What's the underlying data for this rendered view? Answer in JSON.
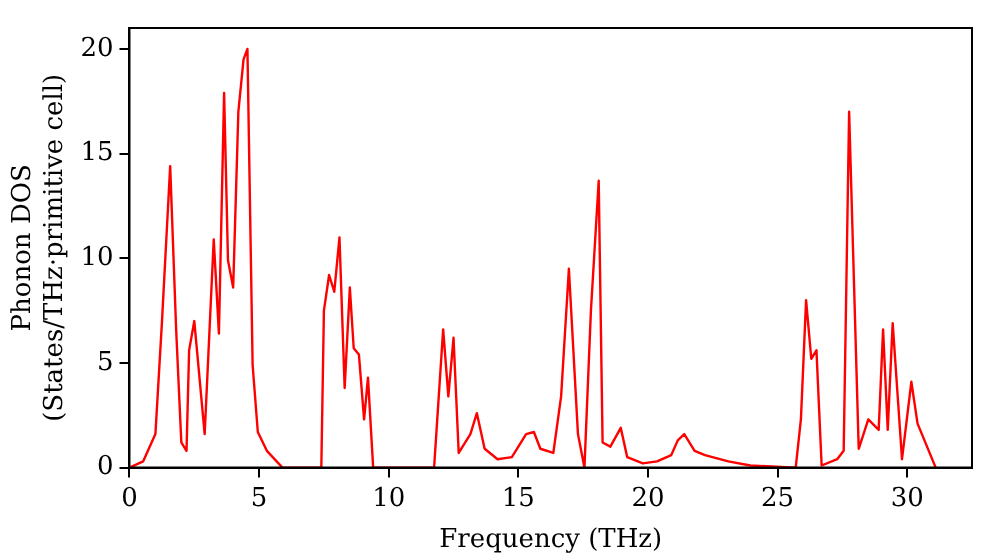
{
  "chart_data": {
    "type": "line",
    "xlabel": "Frequency (THz)",
    "ylabel": "Phonon DOS\n(States/THz·primitive cell)",
    "xlim": [
      0,
      32.5
    ],
    "ylim": [
      0,
      21
    ],
    "xticks": [
      0,
      5,
      10,
      15,
      20,
      25,
      30
    ],
    "yticks": [
      0,
      5,
      10,
      15,
      20
    ],
    "grid": false,
    "legend": false,
    "marker": "none",
    "line_style": "solid",
    "series": [
      {
        "color": "#ff0000",
        "x": [
          0,
          0.53,
          1,
          1.25,
          1.57,
          1.8,
          2,
          2.2,
          2.3,
          2.5,
          2.9,
          3.25,
          3.45,
          3.65,
          3.8,
          4,
          4.2,
          4.4,
          4.55,
          4.75,
          4.95,
          5.3,
          5.9,
          7.4,
          7.5,
          7.7,
          7.9,
          8.1,
          8.3,
          8.5,
          8.65,
          8.85,
          9.05,
          9.2,
          9.4,
          11.75,
          12.1,
          12.3,
          12.5,
          12.7,
          13.15,
          13.4,
          13.7,
          14.2,
          14.75,
          15.3,
          15.6,
          15.85,
          16.35,
          16.65,
          16.95,
          17.3,
          17.55,
          17.8,
          18.1,
          18.25,
          18.55,
          18.95,
          19.2,
          19.8,
          20.35,
          20.9,
          21.15,
          21.4,
          21.8,
          22.2,
          23.1,
          23.95,
          25.7,
          25.9,
          26.1,
          26.3,
          26.5,
          26.7,
          27.3,
          27.55,
          27.76,
          28.13,
          28.5,
          28.9,
          29.07,
          29.25,
          29.44,
          29.8,
          30.16,
          30.4,
          31.1
        ],
        "values": [
          0,
          0.3,
          1.6,
          6.9,
          14.4,
          6.6,
          1.2,
          0.8,
          5.6,
          7,
          1.6,
          10.9,
          6.4,
          17.9,
          9.9,
          8.6,
          17,
          19.5,
          20,
          4.9,
          1.7,
          0.8,
          0,
          0,
          7.5,
          9.2,
          8.4,
          11,
          3.8,
          8.6,
          5.7,
          5.4,
          2.3,
          4.3,
          0,
          0,
          6.6,
          3.4,
          6.2,
          0.7,
          1.6,
          2.6,
          0.9,
          0.4,
          0.5,
          1.6,
          1.7,
          0.9,
          0.7,
          3.4,
          9.5,
          1.6,
          0,
          7.5,
          13.7,
          1.2,
          1,
          1.9,
          0.5,
          0.2,
          0.3,
          0.6,
          1.3,
          1.6,
          0.8,
          0.6,
          0.3,
          0.1,
          0,
          2.3,
          8,
          5.2,
          5.6,
          0.1,
          0.4,
          0.8,
          17,
          0.9,
          2.3,
          1.8,
          6.6,
          1.8,
          6.9,
          0.4,
          4.1,
          2.1,
          0
        ]
      }
    ]
  }
}
